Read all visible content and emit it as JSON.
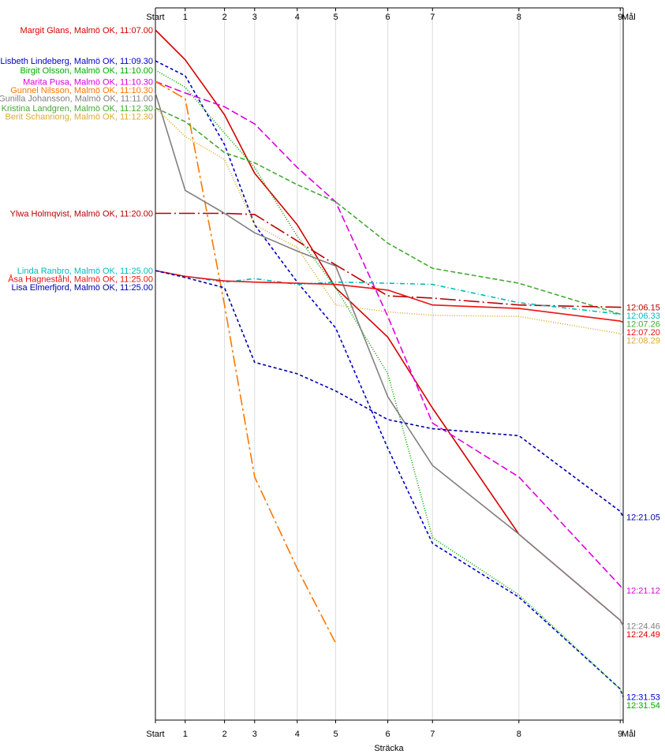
{
  "chart_data": {
    "type": "line",
    "xlabel": "Sträcka",
    "x_ticks": [
      "Start",
      "1",
      "2",
      "3",
      "4",
      "5",
      "6",
      "7",
      "8",
      "9",
      "Mål"
    ],
    "x_tick_positions": [
      0,
      1,
      2.32,
      3.33,
      4.76,
      6.05,
      7.8,
      9.3,
      12.2,
      15.6,
      15.7
    ],
    "series": [
      {
        "name": "Margit Glans, Malmö OK, 11:07.00",
        "color": "#d40000",
        "dash": "",
        "y": [
          -1.0,
          1.6,
          6.4,
          11.5,
          16.0,
          21.5,
          25.8,
          32.0,
          43.0,
          50.5,
          51.0
        ],
        "end_label": "12:24.49"
      },
      {
        "name": "Lisbeth Lindeberg, Malmö OK, 11:09.30",
        "color": "#0000cc",
        "dash": "4,3",
        "y": [
          1.7,
          3.0,
          9.0,
          16.0,
          21.0,
          25.0,
          35.5,
          43.8,
          48.5,
          56.5,
          57.2
        ],
        "end_label": "12:31.53"
      },
      {
        "name": "Birgit Olsson, Malmö OK, 11:10.00",
        "color": "#00aa00",
        "dash": "1,2",
        "y": [
          2.5,
          4.0,
          8.0,
          11.0,
          17.0,
          21.5,
          29.0,
          43.3,
          48.3,
          56.5,
          57.25
        ],
        "end_label": "12:31.54"
      },
      {
        "name": "Marita Pusa, Malmö OK, 11:10.30",
        "color": "#dd00dd",
        "dash": "9,4",
        "y": [
          3.5,
          4.5,
          5.7,
          7.2,
          11.0,
          14.0,
          24.0,
          33.3,
          38.0,
          47.5,
          47.9
        ],
        "end_label": "12:21.12"
      },
      {
        "name": "Gunnel Nilsson, Malmö OK, 11:10.30",
        "color": "#ff7700",
        "dash": "14,4,3,4",
        "y": [
          3.5,
          5.0,
          23.0,
          38.0,
          46.0,
          52.5
        ],
        "end_label": ""
      },
      {
        "name": "Gunilla Johansson, Malmö OK, 11:11.00",
        "color": "#808080",
        "dash": "",
        "y": [
          4.5,
          13.0,
          15.0,
          16.7,
          18.3,
          19.6,
          31.0,
          37.0,
          43.0,
          50.5,
          51.0
        ],
        "end_label": "12:24.46"
      },
      {
        "name": "Kristina Landgren, Malmö OK, 11:12.30",
        "color": "#44aa33",
        "dash": "6,3",
        "y": [
          5.8,
          7.0,
          9.7,
          10.6,
          12.5,
          14.0,
          17.6,
          19.8,
          21.1,
          23.8,
          23.9
        ],
        "end_label": "12:07.26"
      },
      {
        "name": "Berit Schannong, Malmö OK, 11:12.30",
        "color": "#ddaa33",
        "dash": "1,2",
        "y": [
          5.8,
          8.3,
          10.3,
          16.0,
          18.0,
          23.0,
          23.6,
          23.9,
          24.0,
          25.5,
          25.6
        ],
        "end_label": "12:08.29"
      },
      {
        "name": "Ylwa Holmqvist, Malmö OK, 11:20.00",
        "color": "#bb0000",
        "dash": "20,4,2,4",
        "y": [
          15.0,
          15.0,
          15.0,
          15.1,
          17.4,
          19.5,
          22.2,
          22.4,
          23.0,
          23.2,
          23.2
        ],
        "end_label": "12:06.15"
      },
      {
        "name": "Linda Ranbro, Malmö OK, 11:25.00",
        "color": "#00bbbb",
        "dash": "6,3,1,3",
        "y": [
          20.0,
          20.5,
          21.0,
          20.7,
          21.2,
          21.0,
          21.1,
          21.2,
          22.8,
          23.8,
          23.9
        ],
        "end_label": "12:06.33"
      },
      {
        "name": "Åsa Hagneståhl, Malmö OK, 11:25.00",
        "color": "#ee1111",
        "dash": "",
        "y": [
          20.0,
          20.5,
          20.9,
          21.0,
          21.1,
          21.2,
          21.7,
          23.0,
          23.3,
          24.4,
          24.5
        ],
        "end_label": "12:07.20"
      },
      {
        "name": "Lisa Elmerfjord, Malmö OK, 11:25.00",
        "color": "#0000aa",
        "dash": "4,3",
        "y": [
          20.0,
          20.6,
          21.5,
          28.0,
          29.0,
          30.5,
          33.0,
          33.8,
          34.4,
          41.0,
          41.5
        ],
        "end_label": "12:21.05"
      }
    ],
    "end_label_order": [
      {
        "text": "12:06.15",
        "color": "#bb0000"
      },
      {
        "text": "12:06.33",
        "color": "#00bbbb"
      },
      {
        "text": "12:07.20",
        "color": "#ee1111"
      },
      {
        "text": "12:07.26",
        "color": "#44aa33"
      },
      {
        "text": "12:08.29",
        "color": "#ddaa33"
      },
      {
        "text": "12:21.05",
        "color": "#0000aa"
      },
      {
        "text": "12:21.12",
        "color": "#dd00dd"
      },
      {
        "text": "12:24.46",
        "color": "#808080"
      },
      {
        "text": "12:24.49",
        "color": "#d40000"
      },
      {
        "text": "12:31.53",
        "color": "#0000cc"
      },
      {
        "text": "12:31.54",
        "color": "#00aa00"
      }
    ],
    "ylim": [
      -1.0,
      57.5
    ]
  }
}
